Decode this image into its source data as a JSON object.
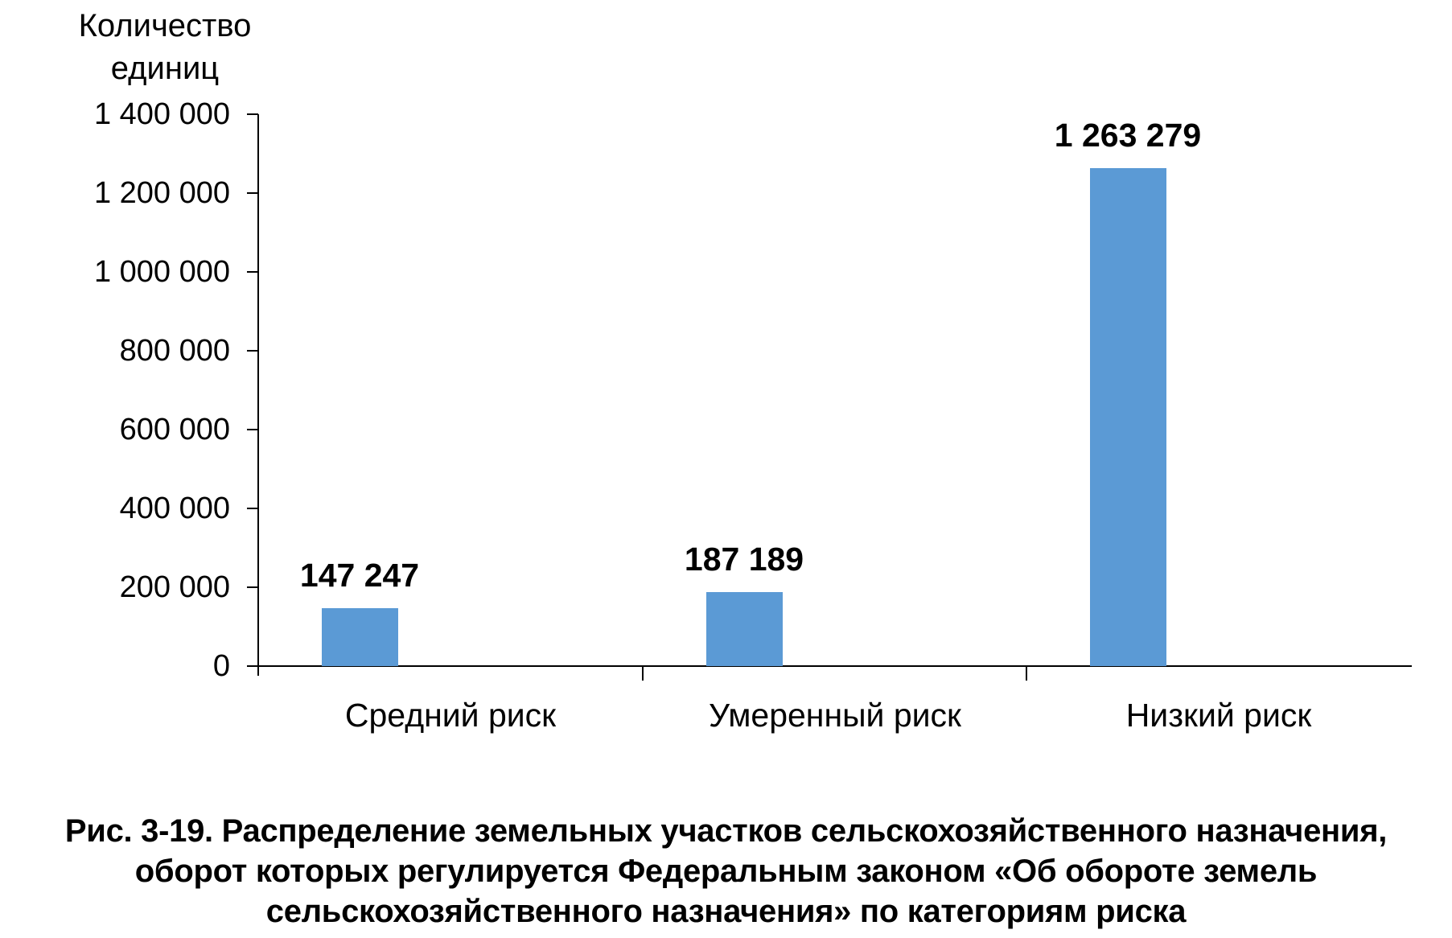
{
  "chart_data": {
    "type": "bar",
    "title": "",
    "y_axis_title": "Количество единиц",
    "categories": [
      "Средний риск",
      "Умеренный риск",
      "Низкий риск"
    ],
    "series": [
      {
        "name": "Количество единиц",
        "values": [
          147247,
          187189,
          1263279
        ]
      }
    ],
    "value_labels": [
      "147 247",
      "187 189",
      "1 263 279"
    ],
    "y_tick_labels": [
      "1 400 000",
      "1 200 000",
      "1 000 000",
      "800 000",
      "600 000",
      "400 000",
      "200 000",
      "0"
    ],
    "y_tick_values": [
      1400000,
      1200000,
      1000000,
      800000,
      600000,
      400000,
      200000,
      0
    ],
    "ylim": [
      0,
      1400000
    ],
    "grid": false,
    "legend_position": "none",
    "bar_color": "#5B9AD5",
    "axis_color": "#000000",
    "text_color": "#000000"
  },
  "caption": {
    "full_text": "Рис. 3-19. Распределение земельных участков сельскохозяйственного назначения, оборот которых регулируется Федеральным законом «Об обороте земель сельскохозяйственного назначения» по категориям риска",
    "lines": [
      "Рис. 3-19. Распределение земельных участков сельскохозяйственного назначения,",
      "оборот которых регулируется Федеральным законом «Об обороте земель",
      "сельскохозяйственного назначения» по категориям риска"
    ]
  }
}
